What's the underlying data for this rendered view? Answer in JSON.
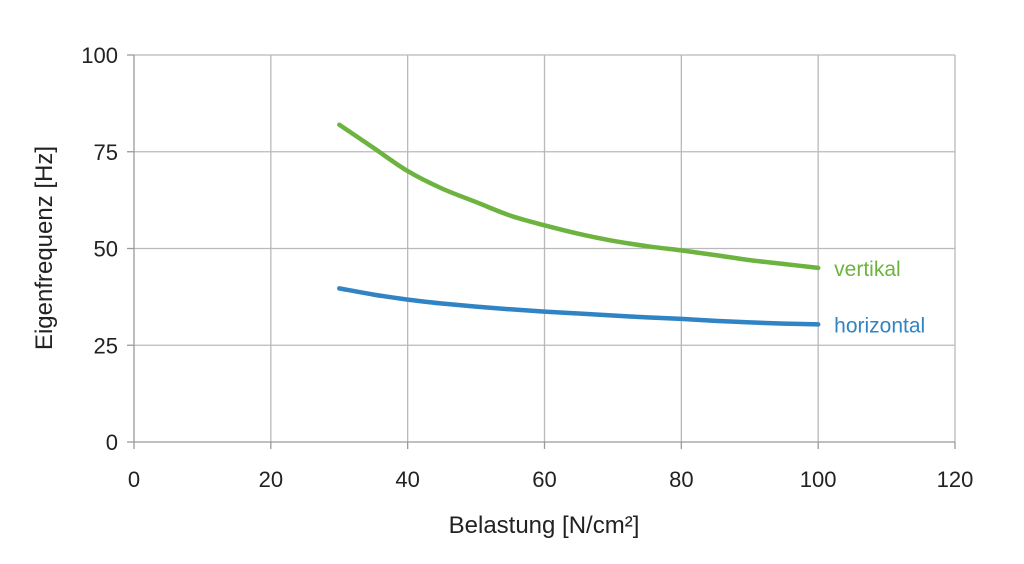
{
  "chart_data": {
    "type": "line",
    "xlabel": "Belastung [N/cm²]",
    "ylabel": "Eigenfrequenz [Hz]",
    "xlim": [
      0,
      120
    ],
    "ylim": [
      0,
      100
    ],
    "x_ticks": [
      0,
      20,
      40,
      60,
      80,
      100,
      120
    ],
    "y_ticks": [
      0,
      25,
      50,
      75,
      100
    ],
    "grid": true,
    "legend": "inline-right-of-line-end",
    "series": [
      {
        "name": "vertikal",
        "color": "#6db33f",
        "x": [
          30,
          35,
          40,
          45,
          50,
          55,
          60,
          65,
          70,
          75,
          80,
          85,
          90,
          95,
          100
        ],
        "y": [
          82,
          76,
          70,
          65.5,
          62,
          58.5,
          56,
          53.8,
          52,
          50.6,
          49.5,
          48.3,
          47,
          46,
          45
        ]
      },
      {
        "name": "horizontal",
        "color": "#3184c4",
        "x": [
          30,
          35,
          40,
          45,
          50,
          55,
          60,
          65,
          70,
          75,
          80,
          85,
          90,
          95,
          100
        ],
        "y": [
          39.7,
          38.1,
          36.8,
          35.8,
          35,
          34.3,
          33.7,
          33.2,
          32.7,
          32.2,
          31.8,
          31.3,
          30.9,
          30.6,
          30.4
        ]
      }
    ]
  }
}
